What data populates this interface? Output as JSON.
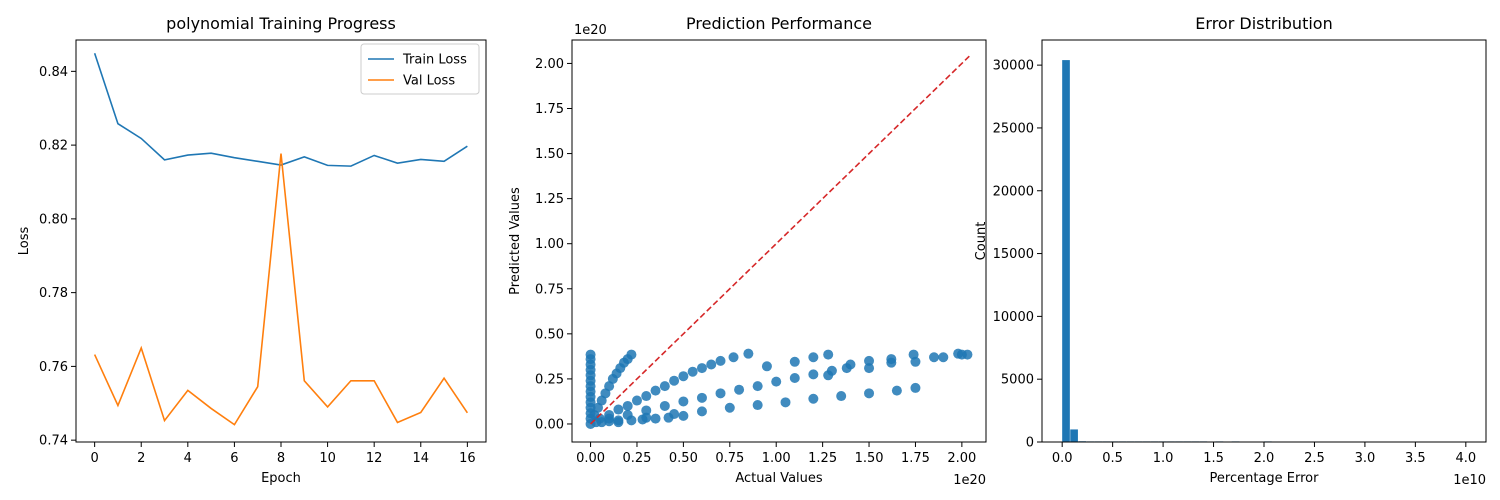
{
  "chart_data": [
    {
      "type": "line",
      "title": "polynomial Training Progress",
      "xlabel": "Epoch",
      "ylabel": "Loss",
      "xlim": [
        -0.8,
        16.8
      ],
      "ylim": [
        0.7395,
        0.8485
      ],
      "xticks": [
        0,
        2,
        4,
        6,
        8,
        10,
        12,
        14,
        16
      ],
      "yticks": [
        0.74,
        0.76,
        0.78,
        0.8,
        0.82,
        0.84
      ],
      "ytick_labels": [
        "0.74",
        "0.76",
        "0.78",
        "0.80",
        "0.82",
        "0.84"
      ],
      "legend_position": "upper-right",
      "x": [
        0,
        1,
        2,
        3,
        4,
        5,
        6,
        7,
        8,
        9,
        10,
        11,
        12,
        13,
        14,
        15,
        16
      ],
      "series": [
        {
          "name": "Train Loss",
          "color": "#1f77b4",
          "values": [
            0.8449,
            0.8258,
            0.8218,
            0.816,
            0.8173,
            0.8178,
            0.8166,
            0.8156,
            0.8146,
            0.8168,
            0.8145,
            0.8143,
            0.8172,
            0.8151,
            0.8161,
            0.8156,
            0.8197
          ]
        },
        {
          "name": "Val Loss",
          "color": "#ff7f0e",
          "values": [
            0.7632,
            0.7494,
            0.765,
            0.7453,
            0.7535,
            0.7486,
            0.7442,
            0.7545,
            0.8177,
            0.7561,
            0.749,
            0.7561,
            0.7561,
            0.7448,
            0.7475,
            0.7568,
            0.7474
          ]
        }
      ]
    },
    {
      "type": "scatter",
      "title": "Prediction Performance",
      "xlabel": "Actual Values",
      "ylabel": "Predicted Values",
      "x_offset_label": "1e20",
      "y_offset_label": "1e20",
      "xlim": [
        -0.1,
        2.13
      ],
      "ylim": [
        -0.1,
        2.13
      ],
      "xticks": [
        0.0,
        0.25,
        0.5,
        0.75,
        1.0,
        1.25,
        1.5,
        1.75,
        2.0
      ],
      "xtick_labels": [
        "0.00",
        "0.25",
        "0.50",
        "0.75",
        "1.00",
        "1.25",
        "1.50",
        "1.75",
        "2.00"
      ],
      "yticks": [
        0.0,
        0.25,
        0.5,
        0.75,
        1.0,
        1.25,
        1.5,
        1.75,
        2.0
      ],
      "ytick_labels": [
        "0.00",
        "0.25",
        "0.50",
        "0.75",
        "1.00",
        "1.25",
        "1.50",
        "1.75",
        "2.00"
      ],
      "point_color": "#1f77b4",
      "reference_line": {
        "color": "#d62728",
        "style": "dashed",
        "from": [
          0,
          0
        ],
        "to": [
          2.04,
          2.04
        ]
      },
      "points": [
        [
          0,
          0.0
        ],
        [
          0,
          0.03
        ],
        [
          0,
          0.06
        ],
        [
          0,
          0.09
        ],
        [
          0,
          0.12
        ],
        [
          0,
          0.15
        ],
        [
          0,
          0.18
        ],
        [
          0,
          0.21
        ],
        [
          0,
          0.24
        ],
        [
          0,
          0.27
        ],
        [
          0,
          0.3
        ],
        [
          0,
          0.33
        ],
        [
          0,
          0.36
        ],
        [
          0,
          0.385
        ],
        [
          0.02,
          0.05
        ],
        [
          0.04,
          0.09
        ],
        [
          0.06,
          0.13
        ],
        [
          0.08,
          0.17
        ],
        [
          0.1,
          0.21
        ],
        [
          0.12,
          0.25
        ],
        [
          0.14,
          0.28
        ],
        [
          0.16,
          0.31
        ],
        [
          0.18,
          0.34
        ],
        [
          0.2,
          0.36
        ],
        [
          0.22,
          0.385
        ],
        [
          0.05,
          0.03
        ],
        [
          0.1,
          0.05
        ],
        [
          0.15,
          0.08
        ],
        [
          0.2,
          0.1
        ],
        [
          0.25,
          0.13
        ],
        [
          0.3,
          0.155
        ],
        [
          0.35,
          0.185
        ],
        [
          0.4,
          0.21
        ],
        [
          0.45,
          0.24
        ],
        [
          0.5,
          0.265
        ],
        [
          0.55,
          0.29
        ],
        [
          0.6,
          0.31
        ],
        [
          0.65,
          0.33
        ],
        [
          0.7,
          0.35
        ],
        [
          0.77,
          0.37
        ],
        [
          0.85,
          0.39
        ],
        [
          0.1,
          0.03
        ],
        [
          0.2,
          0.05
        ],
        [
          0.3,
          0.075
        ],
        [
          0.4,
          0.1
        ],
        [
          0.5,
          0.125
        ],
        [
          0.6,
          0.145
        ],
        [
          0.7,
          0.17
        ],
        [
          0.8,
          0.19
        ],
        [
          0.9,
          0.21
        ],
        [
          1.0,
          0.235
        ],
        [
          1.1,
          0.255
        ],
        [
          1.2,
          0.275
        ],
        [
          1.3,
          0.295
        ],
        [
          1.38,
          0.31
        ],
        [
          0.15,
          0.02
        ],
        [
          0.3,
          0.035
        ],
        [
          0.45,
          0.055
        ],
        [
          0.6,
          0.07
        ],
        [
          0.75,
          0.09
        ],
        [
          0.9,
          0.105
        ],
        [
          1.05,
          0.12
        ],
        [
          1.2,
          0.14
        ],
        [
          1.35,
          0.155
        ],
        [
          1.5,
          0.17
        ],
        [
          1.65,
          0.185
        ],
        [
          1.75,
          0.2
        ],
        [
          0.95,
          0.32
        ],
        [
          1.1,
          0.345
        ],
        [
          1.2,
          0.37
        ],
        [
          1.28,
          0.385
        ],
        [
          1.5,
          0.35
        ],
        [
          1.62,
          0.36
        ],
        [
          1.74,
          0.385
        ],
        [
          1.85,
          0.37
        ],
        [
          1.98,
          0.39
        ],
        [
          2.03,
          0.385
        ],
        [
          1.28,
          0.27
        ],
        [
          1.4,
          0.33
        ],
        [
          1.5,
          0.31
        ],
        [
          1.62,
          0.34
        ],
        [
          1.75,
          0.345
        ],
        [
          1.9,
          0.37
        ],
        [
          2.0,
          0.385
        ],
        [
          0.03,
          0.01
        ],
        [
          0.06,
          0.01
        ],
        [
          0.1,
          0.015
        ],
        [
          0.15,
          0.01
        ],
        [
          0.22,
          0.02
        ],
        [
          0.28,
          0.025
        ],
        [
          0.35,
          0.03
        ],
        [
          0.42,
          0.035
        ],
        [
          0.5,
          0.045
        ]
      ]
    },
    {
      "type": "bar",
      "title": "Error Distribution",
      "xlabel": "Percentage Error",
      "ylabel": "Count",
      "x_offset_label": "1e10",
      "xlim": [
        -0.2,
        4.2
      ],
      "ylim": [
        0,
        32000
      ],
      "xticks": [
        0.0,
        0.5,
        1.0,
        1.5,
        2.0,
        2.5,
        3.0,
        3.5,
        4.0
      ],
      "xtick_labels": [
        "0.0",
        "0.5",
        "1.0",
        "1.5",
        "2.0",
        "2.5",
        "3.0",
        "3.5",
        "4.0"
      ],
      "yticks": [
        0,
        5000,
        10000,
        15000,
        20000,
        25000,
        30000
      ],
      "ytick_labels": [
        "0",
        "5000",
        "10000",
        "15000",
        "20000",
        "25000",
        "30000"
      ],
      "bar_color": "#1f77b4",
      "bin_width": 0.08,
      "bins": [
        [
          0.0,
          30400
        ],
        [
          0.08,
          1000
        ],
        [
          0.16,
          60
        ],
        [
          0.24,
          40
        ],
        [
          0.32,
          30
        ],
        [
          0.4,
          25
        ],
        [
          0.48,
          20
        ],
        [
          0.56,
          20
        ],
        [
          0.64,
          15
        ],
        [
          0.72,
          15
        ],
        [
          0.8,
          12
        ],
        [
          0.88,
          12
        ],
        [
          0.96,
          10
        ],
        [
          1.04,
          10
        ],
        [
          1.12,
          10
        ],
        [
          1.2,
          8
        ],
        [
          1.28,
          8
        ],
        [
          1.36,
          6
        ],
        [
          1.52,
          5
        ],
        [
          1.68,
          5
        ],
        [
          2.0,
          6
        ]
      ]
    }
  ]
}
